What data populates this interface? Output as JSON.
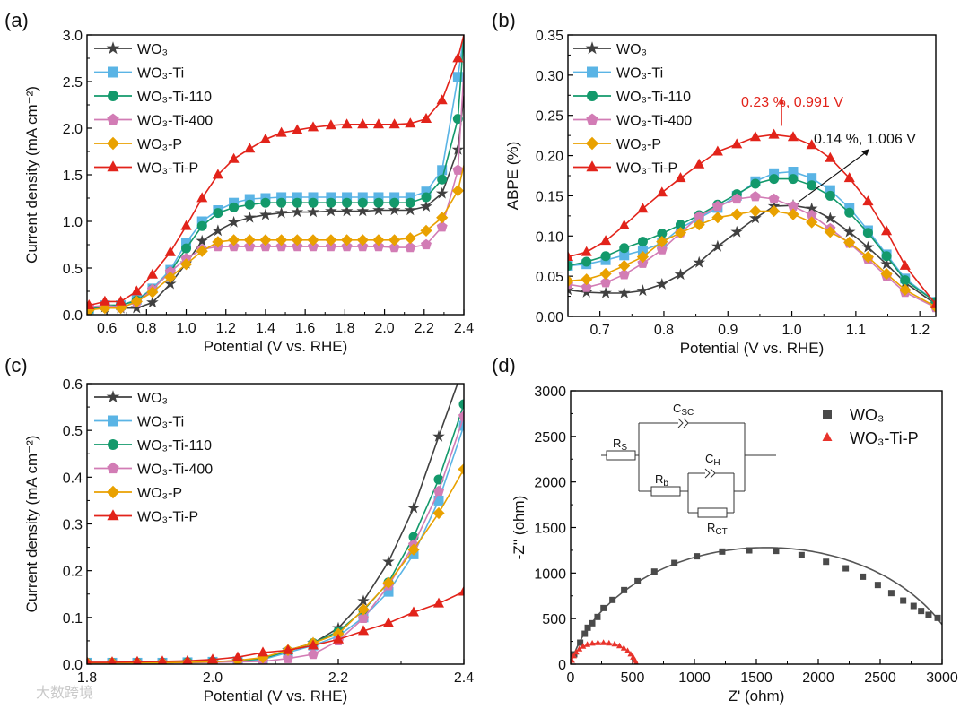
{
  "watermark": "大数跨境",
  "chart_data": [
    {
      "panel": "(a)",
      "type": "line",
      "xlabel": "Potential (V vs. RHE)",
      "ylabel": "Current density (mA cm⁻²)",
      "xlim": [
        0.5,
        2.4
      ],
      "ylim": [
        0,
        3.0
      ],
      "xticks": [
        0.6,
        0.8,
        1.0,
        1.2,
        1.4,
        1.6,
        1.8,
        2.0,
        2.2,
        2.4
      ],
      "xtick_labels": [
        "0.6",
        "0.8",
        "1.0",
        "1.2",
        "1.4",
        "1.6",
        "1.8",
        "2.0",
        "2.2",
        "2.4"
      ],
      "yticks": [
        0,
        0.5,
        1.0,
        1.5,
        2.0,
        2.5,
        3.0
      ],
      "ytick_labels": [
        "0.0",
        "0.5",
        "1.0",
        "1.5",
        "2.0",
        "2.5",
        "3.0"
      ],
      "legend_position": "top-left",
      "x": [
        0.51,
        0.59,
        0.67,
        0.75,
        0.83,
        0.92,
        1.0,
        1.08,
        1.16,
        1.24,
        1.32,
        1.4,
        1.48,
        1.56,
        1.64,
        1.73,
        1.81,
        1.89,
        1.97,
        2.05,
        2.13,
        2.21,
        2.29,
        2.37
      ],
      "series": [
        {
          "name": "WO₃",
          "color": "#404040",
          "marker": "star",
          "values": [
            0.05,
            0.08,
            0.07,
            0.07,
            0.13,
            0.33,
            0.55,
            0.79,
            0.9,
            0.99,
            1.04,
            1.07,
            1.09,
            1.1,
            1.1,
            1.11,
            1.11,
            1.11,
            1.12,
            1.12,
            1.12,
            1.16,
            1.3,
            1.77
          ],
          "end": [
            2.4,
            2.35
          ]
        },
        {
          "name": "WO₃-Ti",
          "color": "#5ab4e5",
          "marker": "square",
          "values": [
            0.06,
            0.1,
            0.1,
            0.16,
            0.28,
            0.48,
            0.77,
            1.0,
            1.12,
            1.2,
            1.24,
            1.25,
            1.26,
            1.26,
            1.26,
            1.26,
            1.26,
            1.26,
            1.26,
            1.26,
            1.26,
            1.32,
            1.55,
            2.55
          ],
          "end": [
            2.4,
            3.0
          ]
        },
        {
          "name": "WO₃-Ti-110",
          "color": "#13996b",
          "marker": "circle",
          "values": [
            0.05,
            0.1,
            0.1,
            0.15,
            0.27,
            0.46,
            0.71,
            0.95,
            1.09,
            1.15,
            1.18,
            1.2,
            1.2,
            1.2,
            1.2,
            1.2,
            1.2,
            1.2,
            1.2,
            1.2,
            1.2,
            1.26,
            1.45,
            2.1
          ],
          "end": [
            2.4,
            3.0
          ]
        },
        {
          "name": "WO₃-Ti-400",
          "color": "#d27cb5",
          "marker": "pentagon",
          "values": [
            0.08,
            0.1,
            0.08,
            0.13,
            0.27,
            0.46,
            0.6,
            0.7,
            0.73,
            0.73,
            0.73,
            0.73,
            0.73,
            0.73,
            0.73,
            0.73,
            0.73,
            0.73,
            0.73,
            0.72,
            0.72,
            0.75,
            0.94,
            1.55
          ],
          "end": [
            2.4,
            2.6
          ]
        },
        {
          "name": "WO₃-P",
          "color": "#e9a100",
          "marker": "diamond",
          "values": [
            0.05,
            0.07,
            0.07,
            0.14,
            0.24,
            0.4,
            0.54,
            0.68,
            0.78,
            0.8,
            0.8,
            0.8,
            0.8,
            0.8,
            0.8,
            0.8,
            0.8,
            0.8,
            0.8,
            0.8,
            0.82,
            0.9,
            1.04,
            1.33
          ],
          "end": [
            2.4,
            1.6
          ]
        },
        {
          "name": "WO₃-Ti-P",
          "color": "#e2231a",
          "marker": "triangle",
          "values": [
            0.1,
            0.14,
            0.14,
            0.25,
            0.43,
            0.67,
            0.95,
            1.25,
            1.5,
            1.67,
            1.78,
            1.88,
            1.95,
            1.98,
            2.01,
            2.03,
            2.04,
            2.04,
            2.04,
            2.04,
            2.05,
            2.1,
            2.3,
            2.75
          ],
          "end": [
            2.4,
            3.0
          ]
        }
      ]
    },
    {
      "panel": "(b)",
      "type": "line",
      "xlabel": "Potential (V vs. RHE)",
      "ylabel": "ABPE (%)",
      "xlim": [
        0.65,
        1.225
      ],
      "ylim": [
        0,
        0.35
      ],
      "xticks": [
        0.7,
        0.8,
        0.9,
        1.0,
        1.1,
        1.2
      ],
      "xtick_labels": [
        "0.7",
        "0.8",
        "0.9",
        "1.0",
        "1.1",
        "1.2"
      ],
      "yticks": [
        0,
        0.05,
        0.1,
        0.15,
        0.2,
        0.25,
        0.3,
        0.35
      ],
      "ytick_labels": [
        "0.00",
        "0.05",
        "0.10",
        "0.15",
        "0.20",
        "0.25",
        "0.30",
        "0.35"
      ],
      "legend_position": "top-left",
      "x": [
        0.65,
        0.679,
        0.709,
        0.738,
        0.767,
        0.797,
        0.826,
        0.855,
        0.884,
        0.914,
        0.943,
        0.972,
        1.002,
        1.031,
        1.06,
        1.09,
        1.119,
        1.148,
        1.177,
        1.225
      ],
      "series": [
        {
          "name": "WO₃",
          "color": "#404040",
          "marker": "star",
          "values": [
            0.033,
            0.03,
            0.029,
            0.029,
            0.032,
            0.04,
            0.052,
            0.067,
            0.087,
            0.105,
            0.122,
            0.137,
            0.138,
            0.134,
            0.122,
            0.105,
            0.086,
            0.065,
            0.042,
            0.015
          ]
        },
        {
          "name": "WO₃-Ti",
          "color": "#5ab4e5",
          "marker": "square",
          "values": [
            0.063,
            0.065,
            0.07,
            0.076,
            0.082,
            0.091,
            0.11,
            0.122,
            0.135,
            0.15,
            0.168,
            0.178,
            0.18,
            0.172,
            0.157,
            0.135,
            0.107,
            0.077,
            0.047,
            0.018
          ]
        },
        {
          "name": "WO₃-Ti-110",
          "color": "#13996b",
          "marker": "circle",
          "values": [
            0.063,
            0.068,
            0.075,
            0.085,
            0.093,
            0.103,
            0.114,
            0.126,
            0.139,
            0.152,
            0.165,
            0.171,
            0.171,
            0.163,
            0.15,
            0.129,
            0.104,
            0.075,
            0.045,
            0.018
          ]
        },
        {
          "name": "WO₃-Ti-400",
          "color": "#d27cb5",
          "marker": "pentagon",
          "values": [
            0.04,
            0.036,
            0.042,
            0.052,
            0.066,
            0.083,
            0.104,
            0.124,
            0.137,
            0.146,
            0.149,
            0.146,
            0.137,
            0.126,
            0.109,
            0.091,
            0.071,
            0.05,
            0.03,
            0.011
          ]
        },
        {
          "name": "WO₃-P",
          "color": "#e9a100",
          "marker": "diamond",
          "values": [
            0.044,
            0.046,
            0.053,
            0.063,
            0.074,
            0.093,
            0.104,
            0.114,
            0.123,
            0.127,
            0.131,
            0.131,
            0.127,
            0.117,
            0.105,
            0.092,
            0.074,
            0.053,
            0.033,
            0.012
          ]
        },
        {
          "name": "WO₃-Ti-P",
          "color": "#e2231a",
          "marker": "triangle",
          "values": [
            0.074,
            0.08,
            0.094,
            0.113,
            0.134,
            0.154,
            0.172,
            0.189,
            0.205,
            0.214,
            0.223,
            0.226,
            0.223,
            0.213,
            0.197,
            0.172,
            0.143,
            0.106,
            0.063,
            0.015
          ]
        }
      ],
      "annotations": [
        {
          "text": "0.23 %, 0.991 V",
          "color": "#e2231a",
          "point": [
            0.984,
            0.228
          ]
        },
        {
          "text": "0.14 %, 1.006 V",
          "color": "#111111",
          "point": [
            1.002,
            0.138
          ]
        }
      ]
    },
    {
      "panel": "(c)",
      "type": "line",
      "xlabel": "Potential (V vs. RHE)",
      "ylabel": "Current density (mA cm⁻²)",
      "xlim": [
        1.8,
        2.4
      ],
      "ylim": [
        0,
        0.6
      ],
      "xticks": [
        1.8,
        2.0,
        2.2,
        2.4
      ],
      "xtick_labels": [
        "1.8",
        "2.0",
        "2.2",
        "2.4"
      ],
      "yticks": [
        0,
        0.1,
        0.2,
        0.3,
        0.4,
        0.5,
        0.6
      ],
      "ytick_labels": [
        "0.0",
        "0.1",
        "0.2",
        "0.3",
        "0.4",
        "0.5",
        "0.6"
      ],
      "legend_position": "top-left",
      "x": [
        1.8,
        1.84,
        1.88,
        1.92,
        1.96,
        2.0,
        2.04,
        2.08,
        2.12,
        2.16,
        2.2,
        2.24,
        2.28,
        2.32,
        2.36,
        2.4
      ],
      "series": [
        {
          "name": "WO₃",
          "color": "#404040",
          "marker": "star",
          "values": [
            0.003,
            0.003,
            0.003,
            0.003,
            0.004,
            0.005,
            0.007,
            0.012,
            0.03,
            0.045,
            0.077,
            0.135,
            0.219,
            0.334,
            0.487,
            null
          ],
          "end": [
            2.39,
            0.6
          ]
        },
        {
          "name": "WO₃-Ti",
          "color": "#5ab4e5",
          "marker": "square",
          "values": [
            0.003,
            0.003,
            0.003,
            0.003,
            0.004,
            0.005,
            0.006,
            0.01,
            0.025,
            0.04,
            0.06,
            0.1,
            0.155,
            0.235,
            0.35,
            0.51
          ]
        },
        {
          "name": "WO₃-Ti-110",
          "color": "#13996b",
          "marker": "circle",
          "values": [
            0.003,
            0.003,
            0.003,
            0.003,
            0.004,
            0.005,
            0.007,
            0.012,
            0.028,
            0.045,
            0.07,
            0.115,
            0.175,
            0.272,
            0.395,
            0.556
          ]
        },
        {
          "name": "WO₃-Ti-400",
          "color": "#d27cb5",
          "marker": "pentagon",
          "values": [
            0.003,
            0.003,
            0.003,
            0.003,
            0.003,
            0.004,
            0.005,
            0.006,
            0.012,
            0.021,
            0.05,
            0.098,
            0.168,
            0.255,
            0.37,
            0.53
          ]
        },
        {
          "name": "WO₃-P",
          "color": "#e9a100",
          "marker": "diamond",
          "values": [
            0.003,
            0.003,
            0.003,
            0.003,
            0.004,
            0.005,
            0.008,
            0.014,
            0.03,
            0.045,
            0.065,
            0.117,
            0.174,
            0.245,
            0.323,
            0.417
          ]
        },
        {
          "name": "WO₃-Ti-P",
          "color": "#e2231a",
          "marker": "triangle",
          "values": [
            0.004,
            0.004,
            0.005,
            0.006,
            0.007,
            0.01,
            0.015,
            0.025,
            0.03,
            0.04,
            0.053,
            0.071,
            0.088,
            0.111,
            0.13,
            0.155
          ]
        }
      ]
    },
    {
      "panel": "(d)",
      "type": "scatter",
      "xlabel": "Z' (ohm)",
      "ylabel": "-Z'' (ohm)",
      "xlim": [
        0,
        3000
      ],
      "ylim": [
        0,
        3000
      ],
      "xticks": [
        0,
        500,
        1000,
        1500,
        2000,
        2500,
        3000
      ],
      "xtick_labels": [
        "0",
        "500",
        "1000",
        "1500",
        "2000",
        "2500",
        "3000"
      ],
      "yticks": [
        0,
        500,
        1000,
        1500,
        2000,
        2500,
        3000
      ],
      "ytick_labels": [
        "0",
        "500",
        "1000",
        "1500",
        "2000",
        "2500",
        "3000"
      ],
      "legend_position": "top-right",
      "series": [
        {
          "name": "WO₃",
          "color": "#4a4a4a",
          "marker": "square",
          "x": [
            29,
            77,
            114,
            138,
            174,
            217,
            266,
            338,
            432,
            541,
            676,
            838,
            1019,
            1224,
            1442,
            1659,
            1865,
            2063,
            2222,
            2360,
            2481,
            2590,
            2686,
            2770,
            2831,
            2891,
            2964
          ],
          "y": [
            108,
            236,
            334,
            400,
            449,
            518,
            616,
            705,
            813,
            911,
            1016,
            1111,
            1184,
            1236,
            1249,
            1243,
            1197,
            1124,
            1052,
            960,
            869,
            780,
            698,
            639,
            584,
            541,
            508
          ],
          "fit_arc": {
            "center_x": 1580,
            "center_y": -335,
            "radius": 1615
          }
        },
        {
          "name": "WO₃-Ti-P",
          "color": "#e8332b",
          "marker": "triangle",
          "x": [
            10,
            25,
            45,
            70,
            100,
            135,
            175,
            220,
            265,
            310,
            355,
            395,
            430,
            460,
            485,
            505,
            520,
            530
          ],
          "y": [
            40,
            90,
            130,
            165,
            195,
            215,
            228,
            235,
            235,
            230,
            220,
            200,
            175,
            145,
            110,
            75,
            40,
            10
          ]
        }
      ],
      "circuit": {
        "Rs": {
          "main": "R",
          "sub": "S"
        },
        "Csc": {
          "main": "C",
          "sub": "SC"
        },
        "Rb": {
          "main": "R",
          "sub": "b"
        },
        "Ch": {
          "main": "C",
          "sub": "H"
        },
        "Rct": {
          "main": "R",
          "sub": "CT"
        }
      }
    }
  ]
}
